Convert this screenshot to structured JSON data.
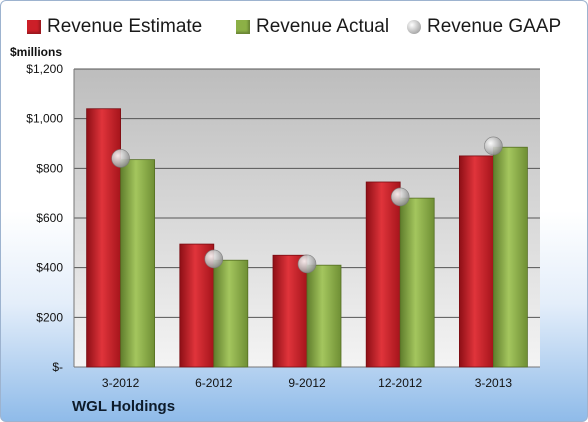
{
  "legend": [
    {
      "label": "Revenue Estimate",
      "color": "#cc1f28",
      "marker": "square"
    },
    {
      "label": "Revenue Actual",
      "color": "#8cb046",
      "marker": "square"
    },
    {
      "label": "Revenue GAAP",
      "color": "#b8b8b8",
      "marker": "circle"
    }
  ],
  "units_label": "$millions",
  "company": "WGL Holdings",
  "chart_data": {
    "type": "bar",
    "categories": [
      "3-2012",
      "6-2012",
      "9-2012",
      "12-2012",
      "3-2013"
    ],
    "series": [
      {
        "name": "Revenue Estimate",
        "type": "bar",
        "color": "#cc1f28",
        "values": [
          1040,
          495,
          450,
          745,
          850
        ]
      },
      {
        "name": "Revenue Actual",
        "type": "bar",
        "color": "#8cb046",
        "values": [
          835,
          430,
          410,
          680,
          885
        ]
      },
      {
        "name": "Revenue GAAP",
        "type": "scatter",
        "color": "#b8b8b8",
        "values": [
          840,
          435,
          415,
          685,
          890
        ]
      }
    ],
    "ylabel": "$millions",
    "ylim": [
      0,
      1200
    ],
    "yticks": [
      0,
      200,
      400,
      600,
      800,
      1000,
      1200
    ],
    "ytick_labels": [
      "$-",
      "$200",
      "$400",
      "$600",
      "$800",
      "$1,000",
      "$1,200"
    ],
    "grid": true,
    "legend_position": "top"
  }
}
